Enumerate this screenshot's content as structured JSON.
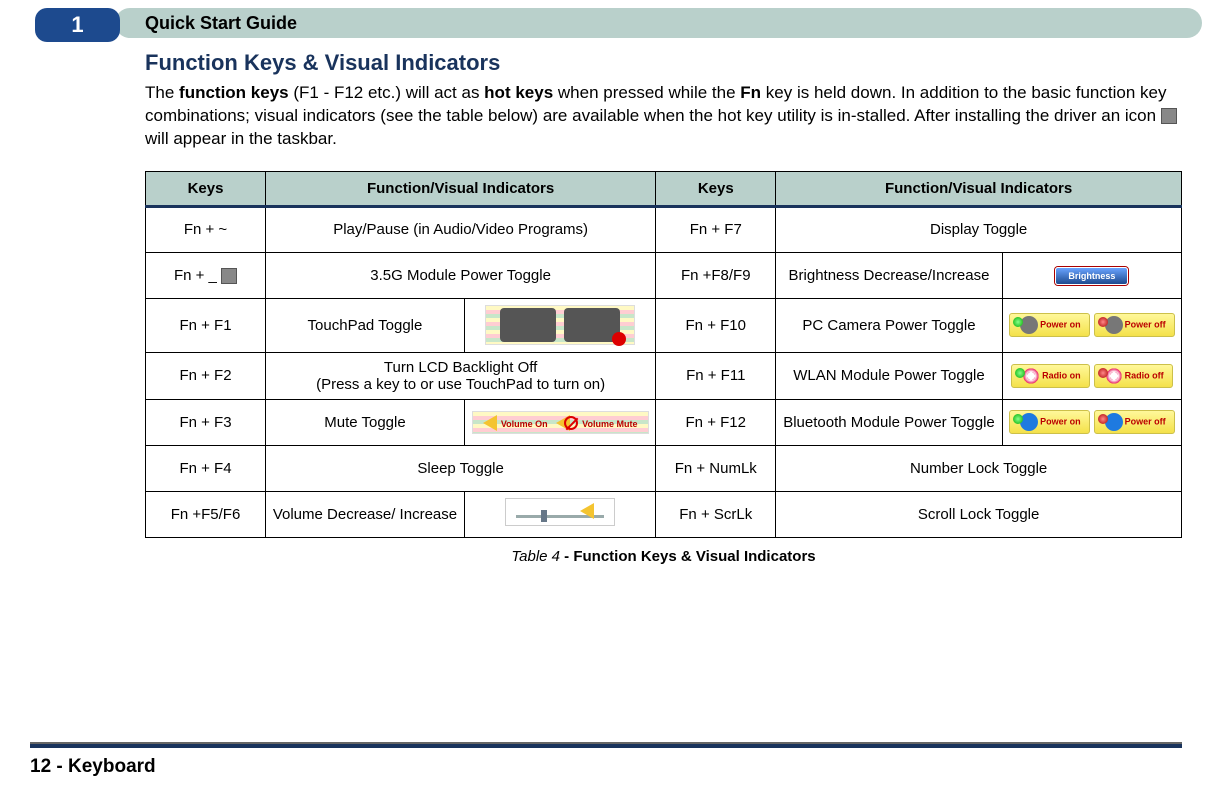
{
  "header": {
    "chapter": "1",
    "title": "Quick Start Guide"
  },
  "section_title": "Function Keys & Visual Indicators",
  "intro": {
    "p1a": "The ",
    "b1": "function keys",
    "p1b": " (F1 - F12 etc.) will act as ",
    "b2": "hot keys",
    "p1c": " when pressed while the ",
    "b3": "Fn",
    "p1d": " key is held down. In addition to the basic function key combinations; visual indicators (see the table below) are available when the hot key utility is in-stalled. After installing the driver an icon ",
    "p1e": " will appear in the taskbar."
  },
  "th": {
    "keys1": "Keys",
    "func1": "Function/Visual Indicators",
    "keys2": "Keys",
    "func2": "Function/Visual Indicators"
  },
  "rows": {
    "r1k1": "Fn + ~",
    "r1f1": "Play/Pause (in Audio/Video Programs)",
    "r1k2": "Fn + F7",
    "r1f2": "Display Toggle",
    "r2k1": "Fn + _ ",
    "r2f1": "3.5G Module Power Toggle",
    "r2k2": "Fn +F8/F9",
    "r2f2": "Brightness Decrease/Increase",
    "r2ind": "Brightness",
    "r3k1": "Fn + F1",
    "r3f1": "TouchPad Toggle",
    "r3k2": "Fn + F10",
    "r3f2": "PC Camera Power Toggle",
    "r3ind_on": "Power on",
    "r3ind_off": "Power off",
    "r4k1": "Fn + F2",
    "r4f1": "Turn LCD Backlight Off\n(Press a key to or use TouchPad to turn on)",
    "r4k2": "Fn + F11",
    "r4f2": "WLAN Module Power Toggle",
    "r4ind_on": "Radio on",
    "r4ind_off": "Radio off",
    "r5k1": "Fn + F3",
    "r5f1": "Mute Toggle",
    "r5vl1": "Volume   On",
    "r5vl2": "Volume   Mute",
    "r5k2": "Fn + F12",
    "r5f2": "Bluetooth Module Power Toggle",
    "r5ind_on": "Power on",
    "r5ind_off": "Power off",
    "r6k1": "Fn + F4",
    "r6f1": "Sleep Toggle",
    "r6k2": "Fn + NumLk",
    "r6f2": "Number Lock Toggle",
    "r7k1": "Fn +F5/F6",
    "r7f1": "Volume Decrease/ Increase",
    "r7k2": "Fn + ScrLk",
    "r7f2": "Scroll Lock Toggle"
  },
  "caption": {
    "label": "Table 4",
    "rest": " - Function Keys & Visual Indicators"
  },
  "footer": "12 - Keyboard",
  "colors": {
    "header_pill": "#b9d0cb",
    "chapter_bg": "#1d4a8e",
    "rule_dark": "#19335c"
  }
}
